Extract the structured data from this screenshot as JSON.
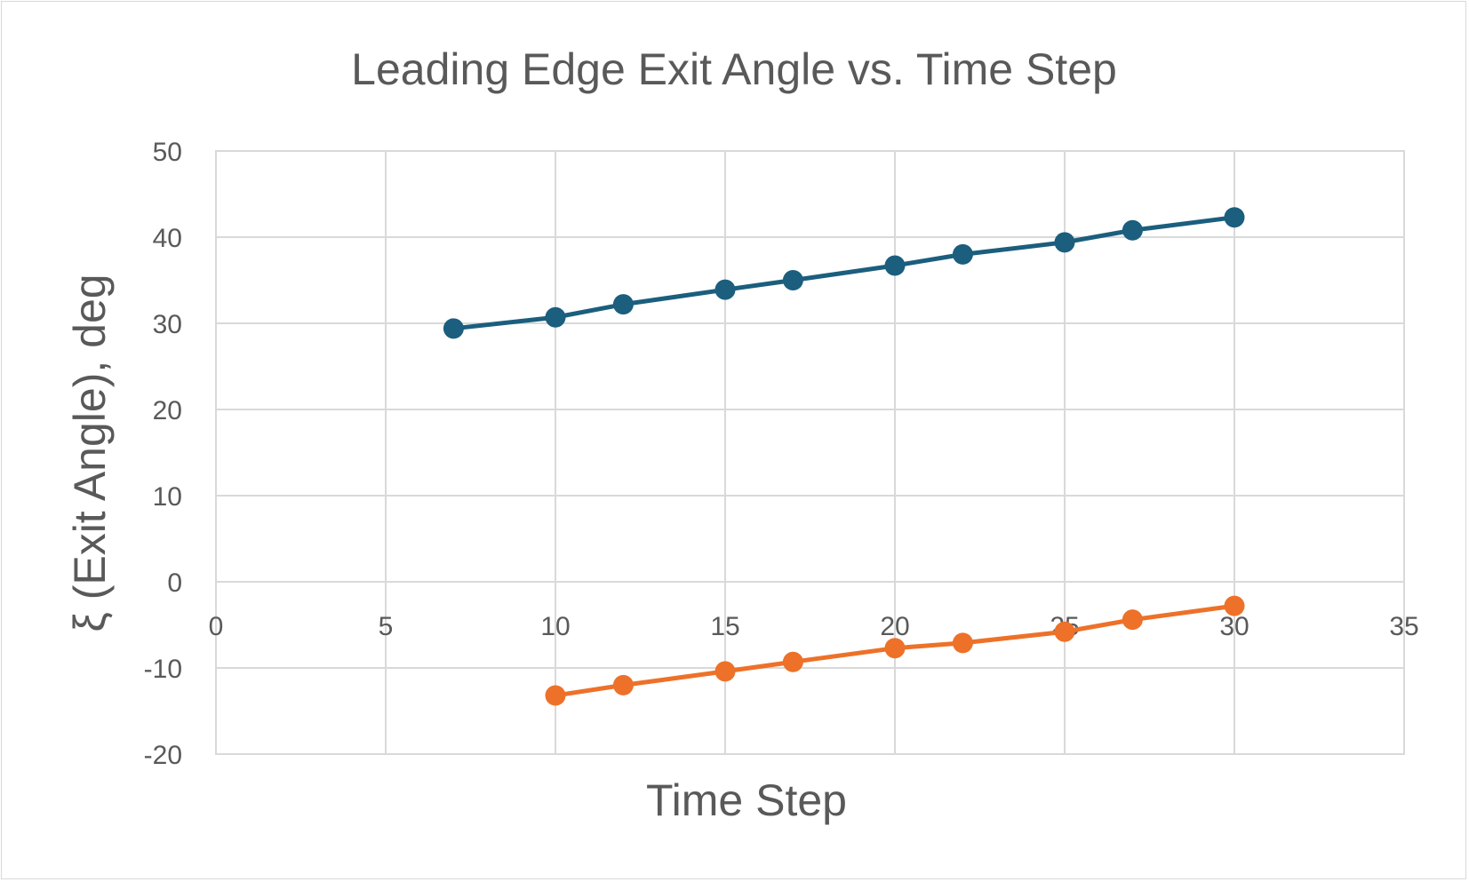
{
  "chart_data": {
    "type": "line",
    "title": "Leading Edge Exit Angle vs. Time Step",
    "xlabel": "Time Step",
    "ylabel": "ξ (Exit Angle), deg",
    "xlim": [
      0,
      35
    ],
    "ylim": [
      -20,
      50
    ],
    "xticks": [
      0,
      5,
      10,
      15,
      20,
      25,
      30,
      35
    ],
    "yticks": [
      -20,
      -10,
      0,
      10,
      20,
      30,
      40,
      50
    ],
    "grid": true,
    "legend": "none",
    "series": [
      {
        "color": "#1b5e7e",
        "points": [
          [
            7,
            29.4
          ],
          [
            10,
            30.7
          ],
          [
            12,
            32.2
          ],
          [
            15,
            33.9
          ],
          [
            17,
            35.0
          ],
          [
            20,
            36.7
          ],
          [
            22,
            38.0
          ],
          [
            25,
            39.4
          ],
          [
            27,
            40.8
          ],
          [
            30,
            42.3
          ]
        ]
      },
      {
        "color": "#ed7129",
        "points": [
          [
            10,
            -13.2
          ],
          [
            12,
            -12.0
          ],
          [
            15,
            -10.4
          ],
          [
            17,
            -9.3
          ],
          [
            20,
            -7.7
          ],
          [
            22,
            -7.1
          ],
          [
            25,
            -5.8
          ],
          [
            27,
            -4.4
          ],
          [
            30,
            -2.8
          ]
        ]
      }
    ]
  }
}
